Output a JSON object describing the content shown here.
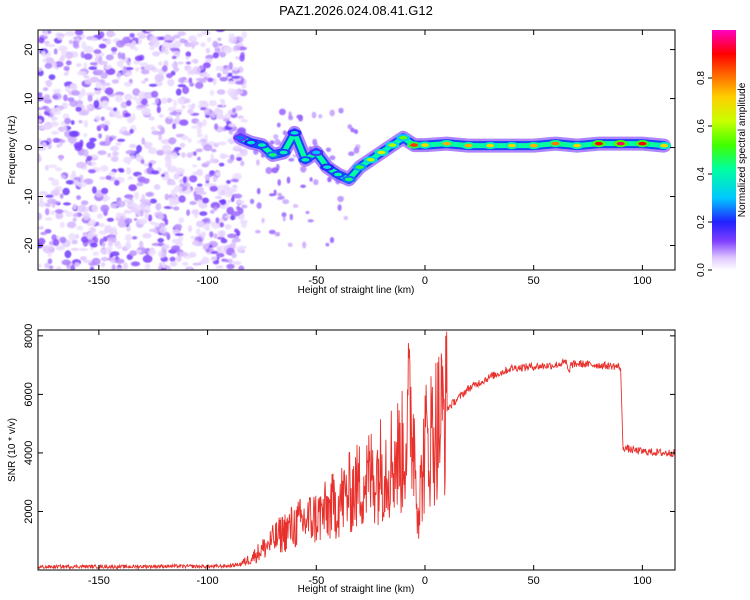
{
  "title": "PAZ1.2026.024.08.41.G12",
  "colors": {
    "line": "#e8312c",
    "axis": "#000000",
    "spectrum_low": "#a070e8",
    "spectrum_mid": "#20c0ff",
    "spectrum_high": "#ff2020"
  },
  "chart_data": [
    {
      "type": "heatmap",
      "name": "spectrogram",
      "xlabel": "Height of straight line (km)",
      "ylabel": "Frequency (Hz)",
      "xlim": [
        -178,
        115
      ],
      "ylim": [
        -25,
        24
      ],
      "xticks": [
        -150,
        -100,
        -50,
        0,
        50,
        100
      ],
      "yticks": [
        -20,
        -10,
        0,
        10,
        20
      ],
      "colorbar": {
        "label": "Normalized spectral amplitude",
        "range": [
          0,
          1
        ],
        "ticks": [
          "0.0",
          "0.2",
          "0.4",
          "0.6",
          "0.8"
        ]
      },
      "noise_region": {
        "x": [
          -178,
          -83
        ],
        "freq": [
          -25,
          24
        ]
      },
      "signal_track": [
        {
          "x": -85,
          "freq": 2.0,
          "amp": 0.25
        },
        {
          "x": -80,
          "freq": 1.0,
          "amp": 0.35
        },
        {
          "x": -75,
          "freq": 0.5,
          "amp": 0.4
        },
        {
          "x": -70,
          "freq": -1.5,
          "amp": 0.45
        },
        {
          "x": -65,
          "freq": -1.0,
          "amp": 0.4
        },
        {
          "x": -60,
          "freq": 3.0,
          "amp": 0.35
        },
        {
          "x": -55,
          "freq": -2.5,
          "amp": 0.4
        },
        {
          "x": -50,
          "freq": -1.0,
          "amp": 0.3
        },
        {
          "x": -45,
          "freq": -4.0,
          "amp": 0.35
        },
        {
          "x": -40,
          "freq": -5.5,
          "amp": 0.4
        },
        {
          "x": -35,
          "freq": -6.5,
          "amp": 0.45
        },
        {
          "x": -30,
          "freq": -4.0,
          "amp": 0.5
        },
        {
          "x": -25,
          "freq": -2.5,
          "amp": 0.6
        },
        {
          "x": -20,
          "freq": -1.0,
          "amp": 0.65
        },
        {
          "x": -15,
          "freq": 0.5,
          "amp": 0.6
        },
        {
          "x": -10,
          "freq": 2.0,
          "amp": 0.55
        },
        {
          "x": -5,
          "freq": 0.5,
          "amp": 0.85
        },
        {
          "x": 0,
          "freq": 0.5,
          "amp": 0.7
        },
        {
          "x": 10,
          "freq": 0.8,
          "amp": 0.75
        },
        {
          "x": 20,
          "freq": 0.4,
          "amp": 0.75
        },
        {
          "x": 30,
          "freq": 0.4,
          "amp": 0.7
        },
        {
          "x": 40,
          "freq": 0.4,
          "amp": 0.7
        },
        {
          "x": 50,
          "freq": 0.4,
          "amp": 0.75
        },
        {
          "x": 60,
          "freq": 0.8,
          "amp": 0.8
        },
        {
          "x": 70,
          "freq": 0.4,
          "amp": 0.7
        },
        {
          "x": 80,
          "freq": 0.8,
          "amp": 0.9
        },
        {
          "x": 90,
          "freq": 0.8,
          "amp": 0.95
        },
        {
          "x": 100,
          "freq": 0.8,
          "amp": 0.9
        },
        {
          "x": 110,
          "freq": 0.4,
          "amp": 0.7
        }
      ]
    },
    {
      "type": "line",
      "name": "snr",
      "xlabel": "Height of straight line (km)",
      "ylabel": "SNR (10 * v/v)",
      "xlim": [
        -178,
        115
      ],
      "ylim": [
        0,
        8200
      ],
      "xticks": [
        -150,
        -100,
        -50,
        0,
        50,
        100
      ],
      "yticks": [
        2000,
        4000,
        6000,
        8000
      ],
      "series": [
        {
          "name": "SNR",
          "x": [
            -178,
            -160,
            -140,
            -120,
            -100,
            -90,
            -85,
            -80,
            -75,
            -70,
            -65,
            -60,
            -55,
            -50,
            -45,
            -40,
            -35,
            -30,
            -25,
            -20,
            -15,
            -10,
            -7,
            -5,
            -3,
            0,
            5,
            10,
            20,
            30,
            40,
            50,
            60,
            65,
            66,
            67,
            70,
            80,
            89,
            90,
            91,
            95,
            100,
            110,
            115
          ],
          "values": [
            100,
            120,
            110,
            130,
            120,
            140,
            200,
            400,
            700,
            1000,
            1300,
            1500,
            1700,
            1800,
            2000,
            2300,
            2600,
            2900,
            3200,
            3500,
            3800,
            4000,
            5500,
            4500,
            2000,
            4200,
            4900,
            5500,
            6200,
            6600,
            6900,
            6950,
            7000,
            7100,
            6700,
            7000,
            7050,
            7000,
            6950,
            6900,
            4200,
            4100,
            4050,
            4000,
            4000
          ]
        }
      ]
    }
  ]
}
